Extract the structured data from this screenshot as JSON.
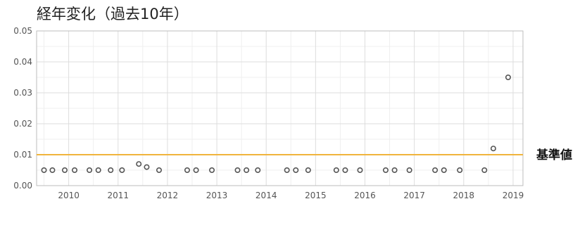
{
  "chart_data": {
    "type": "scatter",
    "title": "経年変化（過去10年）",
    "xlabel": "",
    "ylabel": "",
    "xlim": [
      2009.35,
      2019.2
    ],
    "ylim": [
      0,
      0.05
    ],
    "y_ticks": [
      "0.00",
      "0.01",
      "0.02",
      "0.03",
      "0.04",
      "0.05"
    ],
    "x_ticks": [
      "2010",
      "2011",
      "2012",
      "2013",
      "2014",
      "2015",
      "2016",
      "2017",
      "2018",
      "2019"
    ],
    "grid": true,
    "reference_line": {
      "label": "基準値",
      "value": 0.01,
      "color": "#f0b43c"
    },
    "marker_color": "#555555",
    "series": [
      {
        "x": [
          2009.5,
          2009.67,
          2009.92,
          2010.12,
          2010.42,
          2010.6,
          2010.85,
          2011.08,
          2011.42,
          2011.58,
          2011.83,
          2012.4,
          2012.58,
          2012.9,
          2013.42,
          2013.6,
          2013.83,
          2014.42,
          2014.6,
          2014.85,
          2015.42,
          2015.6,
          2015.9,
          2016.42,
          2016.6,
          2016.9,
          2017.42,
          2017.6,
          2017.92,
          2018.42,
          2018.6,
          2018.9
        ],
        "y": [
          0.005,
          0.005,
          0.005,
          0.005,
          0.005,
          0.005,
          0.005,
          0.005,
          0.007,
          0.006,
          0.005,
          0.005,
          0.005,
          0.005,
          0.005,
          0.005,
          0.005,
          0.005,
          0.005,
          0.005,
          0.005,
          0.005,
          0.005,
          0.005,
          0.005,
          0.005,
          0.005,
          0.005,
          0.005,
          0.005,
          0.012,
          0.035
        ]
      }
    ]
  }
}
